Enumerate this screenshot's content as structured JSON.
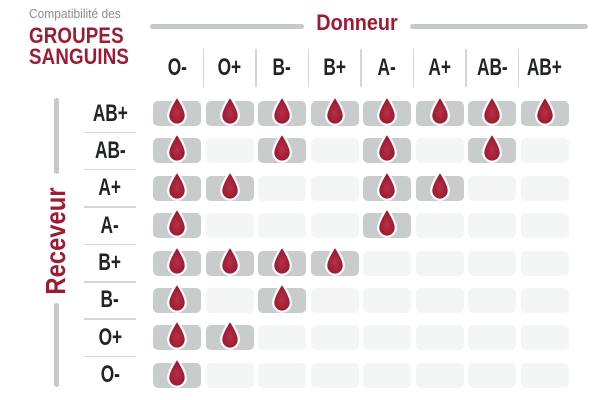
{
  "title": {
    "kicker": "Compatibilité des",
    "line1": "GROUPES",
    "line2": "SANGUINS"
  },
  "colors": {
    "accent_red": "#9E1B32",
    "drop_red": "#A01C33",
    "filled_cell_gray": "#C8CCCC",
    "empty_cell_gray": "#F4F5F5",
    "rule_gray": "#C6C9C9",
    "separator_gray": "#D3D6D6",
    "label_dark": "#212424",
    "kicker_gray": "#8A8A8A"
  },
  "icons": {
    "compatible_marker": "blood-drop-icon"
  },
  "chart_data": {
    "type": "heatmap",
    "title": "Compatibilité des groupes sanguins",
    "x_axis_label": "Donneur",
    "y_axis_label": "Receveur",
    "x_categories": [
      "O-",
      "O+",
      "B-",
      "B+",
      "A-",
      "A+",
      "AB-",
      "AB+"
    ],
    "y_categories": [
      "AB+",
      "AB-",
      "A+",
      "A-",
      "B+",
      "B-",
      "O+",
      "O-"
    ],
    "value_meaning": "1 = compatible (blood drop shown), 0 = not compatible (empty cell)",
    "matrix": [
      [
        1,
        1,
        1,
        1,
        1,
        1,
        1,
        1
      ],
      [
        1,
        0,
        1,
        0,
        1,
        0,
        1,
        0
      ],
      [
        1,
        1,
        0,
        0,
        1,
        1,
        0,
        0
      ],
      [
        1,
        0,
        0,
        0,
        1,
        0,
        0,
        0
      ],
      [
        1,
        1,
        1,
        1,
        0,
        0,
        0,
        0
      ],
      [
        1,
        0,
        1,
        0,
        0,
        0,
        0,
        0
      ],
      [
        1,
        1,
        0,
        0,
        0,
        0,
        0,
        0
      ],
      [
        1,
        0,
        0,
        0,
        0,
        0,
        0,
        0
      ]
    ],
    "legend_position": "none",
    "grid": false
  }
}
